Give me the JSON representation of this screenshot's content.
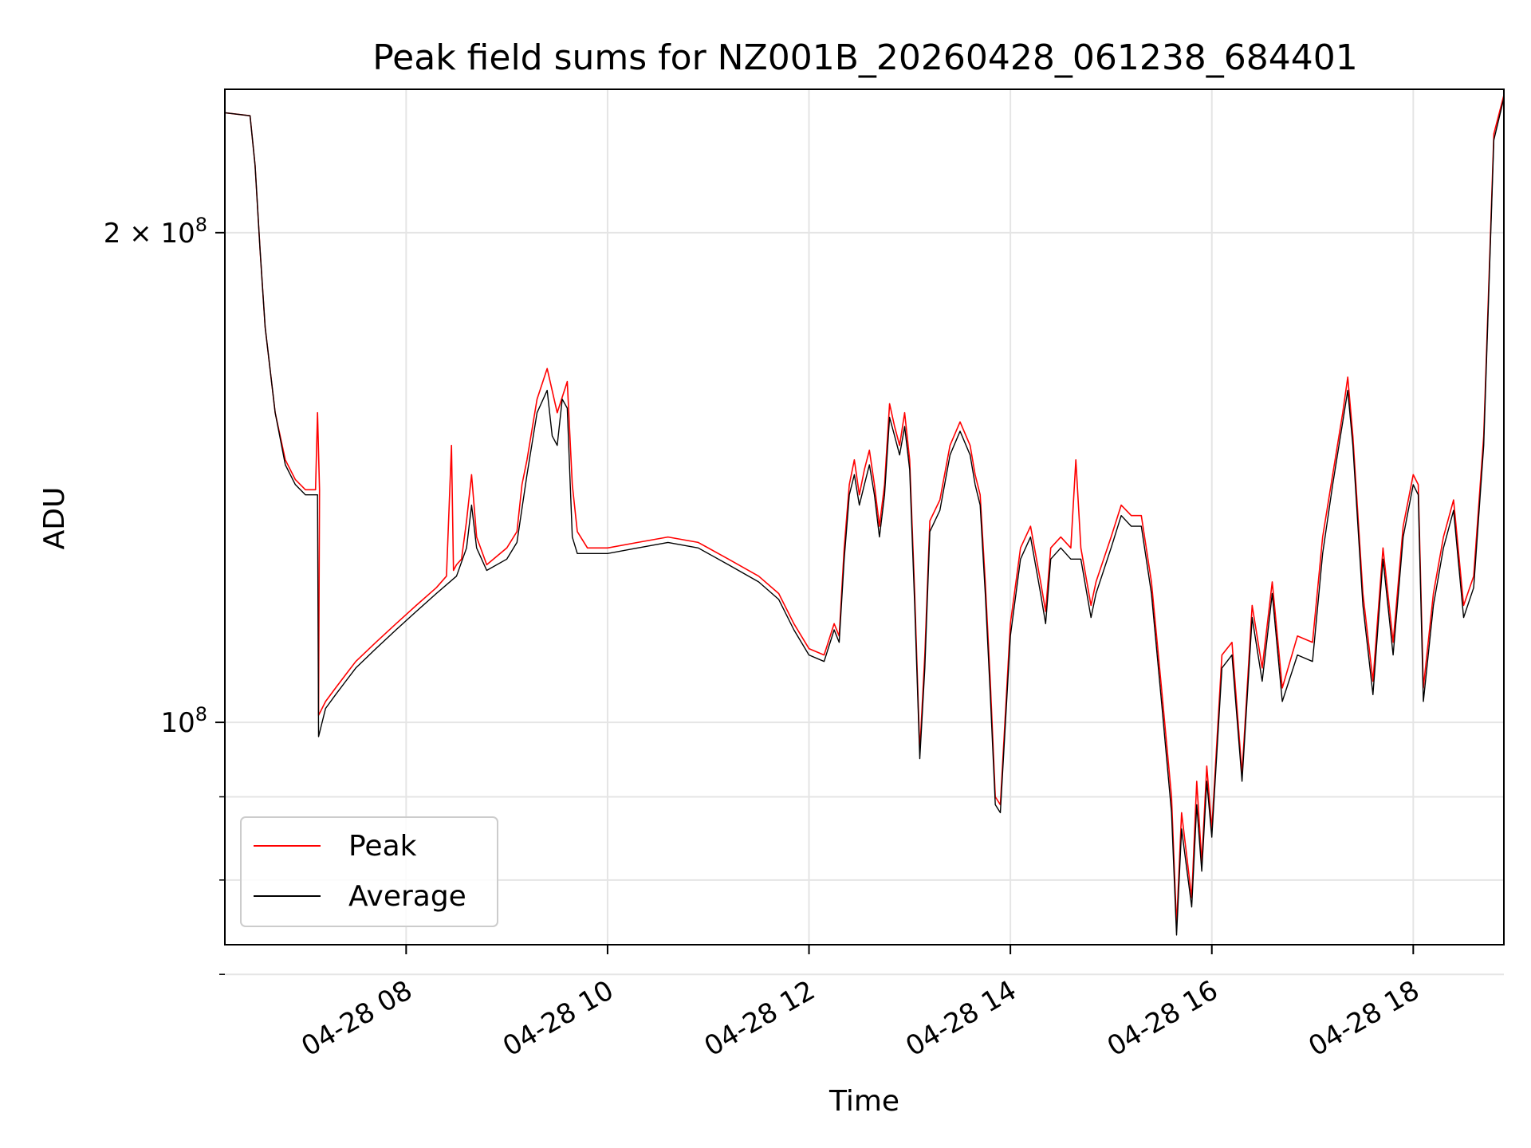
{
  "chart_data": {
    "type": "line",
    "title": "Peak field sums for NZ001B_20260428_061238_684401",
    "xlabel": "Time",
    "ylabel": "ADU",
    "y_scale": "log",
    "x_range_hours": [
      6.2,
      18.9
    ],
    "ylim": [
      73000000,
      245000000
    ],
    "grid": true,
    "legend_position": "lower-left",
    "x_ticks": [
      {
        "value": 8,
        "label": "04-28 08"
      },
      {
        "value": 10,
        "label": "04-28 10"
      },
      {
        "value": 12,
        "label": "04-28 12"
      },
      {
        "value": 14,
        "label": "04-28 14"
      },
      {
        "value": 16,
        "label": "04-28 16"
      },
      {
        "value": 18,
        "label": "04-28 18"
      }
    ],
    "y_major_ticks": [
      {
        "value": 100000000,
        "label_base": "10",
        "label_exp": "8",
        "label_coef": ""
      },
      {
        "value": 200000000,
        "label_base": "10",
        "label_exp": "8",
        "label_coef": "2 × "
      }
    ],
    "y_minor_ticks": [
      70000000,
      80000000,
      90000000
    ],
    "series": [
      {
        "name": "Peak",
        "color": "#ff0000",
        "points": [
          [
            6.2,
            237
          ],
          [
            6.45,
            236
          ],
          [
            6.5,
            220
          ],
          [
            6.55,
            195
          ],
          [
            6.6,
            175
          ],
          [
            6.7,
            155
          ],
          [
            6.8,
            145
          ],
          [
            6.9,
            141
          ],
          [
            7.0,
            139
          ],
          [
            7.1,
            139
          ],
          [
            7.12,
            155
          ],
          [
            7.14,
            139
          ],
          [
            7.13,
            101
          ],
          [
            7.2,
            103
          ],
          [
            7.3,
            105
          ],
          [
            7.4,
            107
          ],
          [
            7.5,
            109
          ],
          [
            7.7,
            112
          ],
          [
            7.9,
            115
          ],
          [
            8.1,
            118
          ],
          [
            8.3,
            121
          ],
          [
            8.4,
            123
          ],
          [
            8.45,
            148
          ],
          [
            8.47,
            124
          ],
          [
            8.5,
            125
          ],
          [
            8.55,
            126
          ],
          [
            8.6,
            133
          ],
          [
            8.65,
            142
          ],
          [
            8.7,
            130
          ],
          [
            8.8,
            125
          ],
          [
            9.0,
            128
          ],
          [
            9.1,
            131
          ],
          [
            9.15,
            140
          ],
          [
            9.2,
            145
          ],
          [
            9.3,
            158
          ],
          [
            9.4,
            165
          ],
          [
            9.5,
            155
          ],
          [
            9.6,
            162
          ],
          [
            9.65,
            140
          ],
          [
            9.7,
            131
          ],
          [
            9.8,
            128
          ],
          [
            10.0,
            128
          ],
          [
            10.3,
            129
          ],
          [
            10.6,
            130
          ],
          [
            10.9,
            129
          ],
          [
            11.2,
            126
          ],
          [
            11.5,
            123
          ],
          [
            11.7,
            120
          ],
          [
            11.85,
            115
          ],
          [
            12.0,
            111
          ],
          [
            12.15,
            110
          ],
          [
            12.25,
            115
          ],
          [
            12.3,
            113
          ],
          [
            12.35,
            128
          ],
          [
            12.4,
            140
          ],
          [
            12.45,
            145
          ],
          [
            12.5,
            138
          ],
          [
            12.55,
            143
          ],
          [
            12.6,
            147
          ],
          [
            12.65,
            140
          ],
          [
            12.7,
            132
          ],
          [
            12.75,
            140
          ],
          [
            12.8,
            157
          ],
          [
            12.85,
            152
          ],
          [
            12.9,
            148
          ],
          [
            12.95,
            155
          ],
          [
            13.0,
            145
          ],
          [
            13.05,
            120
          ],
          [
            13.1,
            96
          ],
          [
            13.15,
            110
          ],
          [
            13.2,
            133
          ],
          [
            13.3,
            137
          ],
          [
            13.4,
            148
          ],
          [
            13.5,
            153
          ],
          [
            13.6,
            148
          ],
          [
            13.65,
            142
          ],
          [
            13.7,
            138
          ],
          [
            13.75,
            122
          ],
          [
            13.8,
            106
          ],
          [
            13.85,
            90
          ],
          [
            13.9,
            89
          ],
          [
            14.0,
            115
          ],
          [
            14.1,
            128
          ],
          [
            14.2,
            132
          ],
          [
            14.3,
            122
          ],
          [
            14.35,
            117
          ],
          [
            14.4,
            128
          ],
          [
            14.5,
            130
          ],
          [
            14.6,
            128
          ],
          [
            14.65,
            145
          ],
          [
            14.7,
            128
          ],
          [
            14.8,
            118
          ],
          [
            14.85,
            122
          ],
          [
            15.0,
            130
          ],
          [
            15.1,
            136
          ],
          [
            15.2,
            134
          ],
          [
            15.3,
            134
          ],
          [
            15.4,
            122
          ],
          [
            15.5,
            105
          ],
          [
            15.6,
            90
          ],
          [
            15.65,
            75
          ],
          [
            15.7,
            88
          ],
          [
            15.8,
            78
          ],
          [
            15.85,
            92
          ],
          [
            15.9,
            82
          ],
          [
            15.95,
            94
          ],
          [
            16.0,
            86
          ],
          [
            16.1,
            110
          ],
          [
            16.2,
            112
          ],
          [
            16.3,
            93
          ],
          [
            16.4,
            118
          ],
          [
            16.5,
            108
          ],
          [
            16.6,
            122
          ],
          [
            16.7,
            105
          ],
          [
            16.85,
            113
          ],
          [
            17.0,
            112
          ],
          [
            17.1,
            130
          ],
          [
            17.2,
            142
          ],
          [
            17.3,
            155
          ],
          [
            17.35,
            163
          ],
          [
            17.4,
            150
          ],
          [
            17.5,
            120
          ],
          [
            17.6,
            106
          ],
          [
            17.7,
            128
          ],
          [
            17.8,
            112
          ],
          [
            17.9,
            132
          ],
          [
            18.0,
            142
          ],
          [
            18.05,
            140
          ],
          [
            18.1,
            105
          ],
          [
            18.2,
            120
          ],
          [
            18.3,
            130
          ],
          [
            18.4,
            137
          ],
          [
            18.5,
            118
          ],
          [
            18.6,
            123
          ],
          [
            18.7,
            150
          ],
          [
            18.8,
            230
          ],
          [
            18.9,
            243
          ]
        ]
      },
      {
        "name": "Average",
        "color": "#000000",
        "points": [
          [
            6.2,
            237
          ],
          [
            6.45,
            236
          ],
          [
            6.5,
            220
          ],
          [
            6.55,
            195
          ],
          [
            6.6,
            175
          ],
          [
            6.7,
            155
          ],
          [
            6.8,
            144
          ],
          [
            6.9,
            140
          ],
          [
            7.0,
            138
          ],
          [
            7.1,
            138
          ],
          [
            7.12,
            138
          ],
          [
            7.13,
            98
          ],
          [
            7.2,
            102
          ],
          [
            7.3,
            104
          ],
          [
            7.4,
            106
          ],
          [
            7.5,
            108
          ],
          [
            7.7,
            111
          ],
          [
            7.9,
            114
          ],
          [
            8.1,
            117
          ],
          [
            8.3,
            120
          ],
          [
            8.5,
            123
          ],
          [
            8.6,
            128
          ],
          [
            8.65,
            136
          ],
          [
            8.7,
            128
          ],
          [
            8.8,
            124
          ],
          [
            9.0,
            126
          ],
          [
            9.1,
            129
          ],
          [
            9.2,
            142
          ],
          [
            9.3,
            155
          ],
          [
            9.4,
            160
          ],
          [
            9.45,
            150
          ],
          [
            9.5,
            148
          ],
          [
            9.55,
            158
          ],
          [
            9.6,
            156
          ],
          [
            9.65,
            130
          ],
          [
            9.7,
            127
          ],
          [
            9.8,
            127
          ],
          [
            10.0,
            127
          ],
          [
            10.3,
            128
          ],
          [
            10.6,
            129
          ],
          [
            10.9,
            128
          ],
          [
            11.2,
            125
          ],
          [
            11.5,
            122
          ],
          [
            11.7,
            119
          ],
          [
            11.85,
            114
          ],
          [
            12.0,
            110
          ],
          [
            12.15,
            109
          ],
          [
            12.25,
            114
          ],
          [
            12.3,
            112
          ],
          [
            12.35,
            126
          ],
          [
            12.4,
            138
          ],
          [
            12.45,
            142
          ],
          [
            12.5,
            136
          ],
          [
            12.55,
            140
          ],
          [
            12.6,
            144
          ],
          [
            12.65,
            138
          ],
          [
            12.7,
            130
          ],
          [
            12.75,
            138
          ],
          [
            12.8,
            154
          ],
          [
            12.85,
            150
          ],
          [
            12.9,
            146
          ],
          [
            12.95,
            152
          ],
          [
            13.0,
            143
          ],
          [
            13.05,
            118
          ],
          [
            13.1,
            95
          ],
          [
            13.15,
            108
          ],
          [
            13.2,
            131
          ],
          [
            13.3,
            135
          ],
          [
            13.4,
            146
          ],
          [
            13.5,
            151
          ],
          [
            13.6,
            146
          ],
          [
            13.65,
            140
          ],
          [
            13.7,
            136
          ],
          [
            13.75,
            120
          ],
          [
            13.8,
            104
          ],
          [
            13.85,
            89
          ],
          [
            13.9,
            88
          ],
          [
            14.0,
            113
          ],
          [
            14.1,
            126
          ],
          [
            14.2,
            130
          ],
          [
            14.3,
            120
          ],
          [
            14.35,
            115
          ],
          [
            14.4,
            126
          ],
          [
            14.5,
            128
          ],
          [
            14.6,
            126
          ],
          [
            14.7,
            126
          ],
          [
            14.8,
            116
          ],
          [
            14.85,
            120
          ],
          [
            15.0,
            128
          ],
          [
            15.1,
            134
          ],
          [
            15.2,
            132
          ],
          [
            15.3,
            132
          ],
          [
            15.4,
            120
          ],
          [
            15.5,
            103
          ],
          [
            15.6,
            88
          ],
          [
            15.65,
            74
          ],
          [
            15.7,
            86
          ],
          [
            15.8,
            77
          ],
          [
            15.85,
            89
          ],
          [
            15.9,
            81
          ],
          [
            15.95,
            92
          ],
          [
            16.0,
            85
          ],
          [
            16.1,
            108
          ],
          [
            16.2,
            110
          ],
          [
            16.3,
            92
          ],
          [
            16.4,
            116
          ],
          [
            16.5,
            106
          ],
          [
            16.6,
            120
          ],
          [
            16.7,
            103
          ],
          [
            16.85,
            110
          ],
          [
            17.0,
            109
          ],
          [
            17.1,
            127
          ],
          [
            17.2,
            140
          ],
          [
            17.3,
            153
          ],
          [
            17.35,
            160
          ],
          [
            17.4,
            148
          ],
          [
            17.5,
            118
          ],
          [
            17.6,
            104
          ],
          [
            17.7,
            126
          ],
          [
            17.8,
            110
          ],
          [
            17.9,
            130
          ],
          [
            18.0,
            140
          ],
          [
            18.05,
            138
          ],
          [
            18.1,
            103
          ],
          [
            18.2,
            118
          ],
          [
            18.3,
            128
          ],
          [
            18.4,
            135
          ],
          [
            18.5,
            116
          ],
          [
            18.6,
            121
          ],
          [
            18.7,
            148
          ],
          [
            18.8,
            228
          ],
          [
            18.9,
            242
          ]
        ]
      }
    ]
  }
}
